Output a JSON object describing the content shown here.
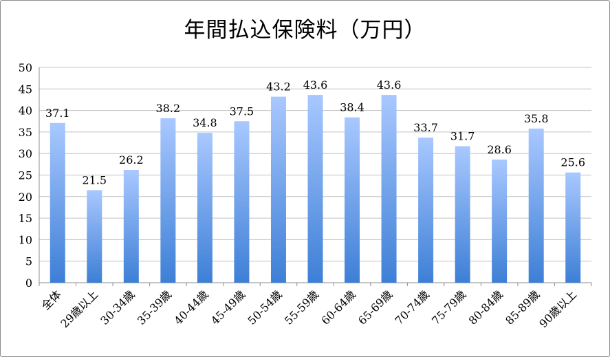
{
  "chart_data": {
    "type": "bar",
    "title": "年間払込保険料（万円）",
    "categories": [
      "全体",
      "29歳以上",
      "30-34歳",
      "35-39歳",
      "40-44歳",
      "45-49歳",
      "50-54歳",
      "55-59歳",
      "60-64歳",
      "65-69歳",
      "70-74歳",
      "75-79歳",
      "80-84歳",
      "85-89歳",
      "90歳以上"
    ],
    "values": [
      37.1,
      21.5,
      26.2,
      38.2,
      34.8,
      37.5,
      43.2,
      43.6,
      38.4,
      43.6,
      33.7,
      31.7,
      28.6,
      35.8,
      25.6
    ],
    "value_labels": [
      "37.1",
      "21.5",
      "26.2",
      "38.2",
      "34.8",
      "37.5",
      "43.2",
      "43.6",
      "38.4",
      "43.6",
      "33.7",
      "31.7",
      "28.6",
      "35.8",
      "25.6"
    ],
    "yticks": [
      "0",
      "5",
      "10",
      "15",
      "20",
      "25",
      "30",
      "35",
      "40",
      "45",
      "50"
    ],
    "ylim": [
      0,
      50
    ],
    "grid": true,
    "colors": {
      "bar_top": "#a9c8ff",
      "bar_bottom": "#3d7fd6",
      "grid": "#c0c0c0"
    }
  }
}
